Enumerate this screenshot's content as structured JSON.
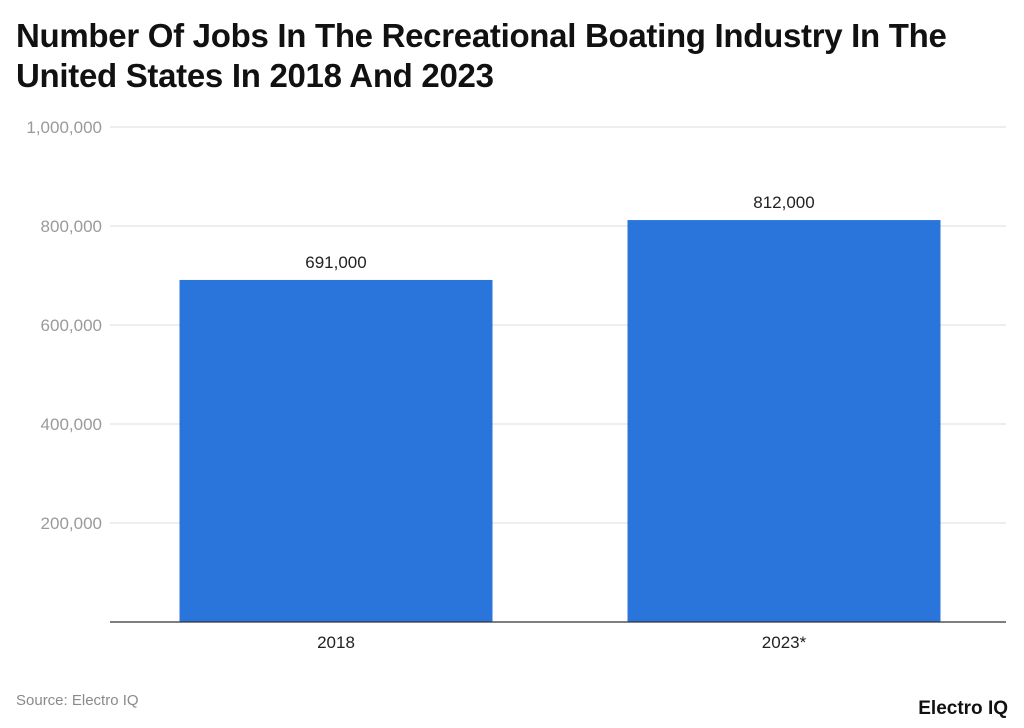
{
  "chart_data": {
    "type": "bar",
    "title": "Number Of Jobs In The Recreational Boating Industry In The United States In 2018 And 2023",
    "categories": [
      "2018",
      "2023*"
    ],
    "values": [
      691000,
      812000
    ],
    "data_labels": [
      "691,000",
      "812,000"
    ],
    "xlabel": "",
    "ylabel": "",
    "ylim": [
      0,
      1000000
    ],
    "yticks": [
      200000,
      400000,
      600000,
      800000,
      1000000
    ],
    "ytick_labels": [
      "200,000",
      "400,000",
      "600,000",
      "800,000",
      "1,000,000"
    ],
    "grid": true,
    "legend": "none",
    "bar_color": "#2a75dc"
  },
  "footer": {
    "source": "Source: Electro IQ",
    "logo": "Electro IQ"
  }
}
